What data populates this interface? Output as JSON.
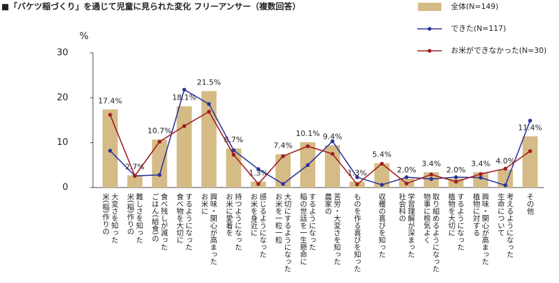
{
  "chart_data": {
    "type": "bar-line",
    "title": "■「バケツ稲づくり」を通じて児童に見られた変化 フリーアンサー（複数回答）",
    "y_label": "%",
    "categories": [
      [
        "米(稲)作りの",
        "大変さを知った"
      ],
      [
        "米(稲)作りの",
        "難しさを知った"
      ],
      [
        "ごはん(給食)の",
        "食べ残しが減った"
      ],
      [
        "食べ物を大切に",
        "するようになった"
      ],
      [
        "お米に",
        "興味・関心が高まった"
      ],
      [
        "お米に愛着を",
        "持つようになった"
      ],
      [
        "お米を身近に",
        "感じるようになった"
      ],
      [
        "お米を一粒一粒",
        "大切にするようになった"
      ],
      [
        "稲の世話を一生懸命に",
        "するようになった"
      ],
      [
        "農家の",
        "苦労・大変さを知った"
      ],
      [
        "ものを作る喜びを知った"
      ],
      [
        "収穫の喜びを知った"
      ],
      [
        "社会科の",
        "学習理解が深まった"
      ],
      [
        "物事に根気よく",
        "取り組めるようになった"
      ],
      [
        "植物を大切に",
        "するようになった"
      ],
      [
        "植物に対する",
        "興味・関心が高まった"
      ],
      [
        "生命について",
        "考えるようになった"
      ],
      [
        "その他"
      ]
    ],
    "series": [
      {
        "name": "全体(N=149)",
        "kind": "bar",
        "color": "#d5bb86",
        "values": [
          17.4,
          2.7,
          10.7,
          18.1,
          21.5,
          8.7,
          1.3,
          7.4,
          10.1,
          9.4,
          1.3,
          5.4,
          2.0,
          3.4,
          2.0,
          3.4,
          4.0,
          11.4
        ],
        "value_labels": [
          "17.4%",
          "2.7%",
          "10.7%",
          "18.1%",
          "21.5%",
          "8.7%",
          "1.3%",
          "7.4%",
          "10.1%",
          "9.4%",
          "1.3%",
          "5.4%",
          "2.0%",
          "3.4%",
          "2.0%",
          "3.4%",
          "4.0%",
          "11.4%"
        ]
      },
      {
        "name": "できた(N=117)",
        "kind": "line",
        "color": "#2b3598",
        "values": [
          8.2,
          2.6,
          2.8,
          21.8,
          18.6,
          8.3,
          4.1,
          0.8,
          5.0,
          10.3,
          2.3,
          0.6,
          2.3,
          1.9,
          2.3,
          2.2,
          0.5,
          14.9
        ]
      },
      {
        "name": "お米ができなかった(N=30)",
        "kind": "line",
        "color": "#a01c20",
        "values": [
          16.2,
          2.6,
          10.2,
          13.7,
          16.9,
          7.3,
          0.8,
          7.0,
          9.2,
          7.5,
          0.7,
          5.3,
          0.9,
          2.9,
          1.3,
          3.0,
          4.2,
          8.1
        ]
      }
    ],
    "ylim": [
      0,
      30
    ],
    "yticks": [
      0,
      10,
      20,
      30
    ],
    "grid": false
  }
}
